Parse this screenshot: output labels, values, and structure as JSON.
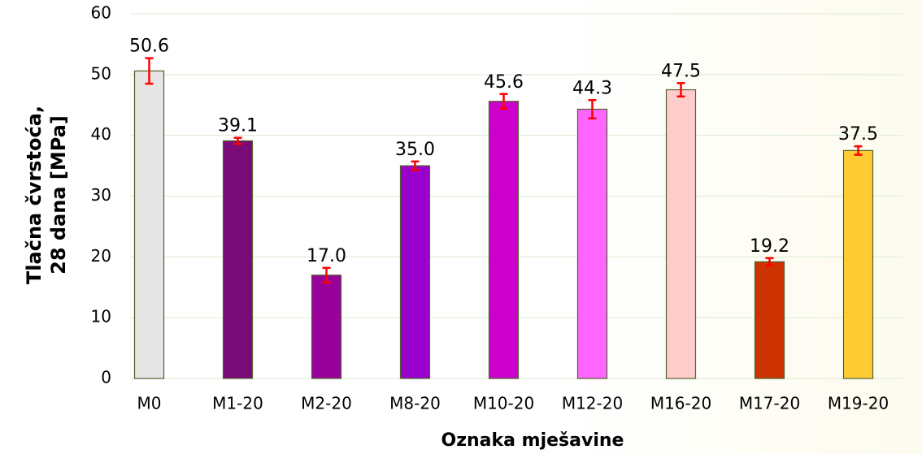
{
  "chart_data": {
    "type": "bar",
    "xlabel": "Oznaka mješavine",
    "ylabel": [
      "Tlačna čvrstoća,",
      "28 dana [MPa]"
    ],
    "categories": [
      "M0",
      "M1-20",
      "M2-20",
      "M8-20",
      "M10-20",
      "M12-20",
      "M16-20",
      "M17-20",
      "M19-20"
    ],
    "values": [
      50.6,
      39.1,
      17.0,
      35.0,
      45.6,
      44.3,
      47.5,
      19.2,
      37.5
    ],
    "value_labels": [
      "50.6",
      "39.1",
      "17.0",
      "35.0",
      "45.6",
      "44.3",
      "47.5",
      "19.2",
      "37.5"
    ],
    "errors": [
      2.1,
      0.5,
      1.2,
      0.7,
      1.2,
      1.5,
      1.1,
      0.6,
      0.7
    ],
    "colors": [
      "#e6e6e6",
      "#7a0a78",
      "#990099",
      "#9900cc",
      "#cc00cc",
      "#ff66ff",
      "#ffcccc",
      "#cc3300",
      "#ffcc33"
    ],
    "error_color": "#ff0000",
    "ylim": [
      0,
      60
    ],
    "yticks": [
      0,
      10,
      20,
      30,
      40,
      50,
      60
    ],
    "grid": true
  }
}
